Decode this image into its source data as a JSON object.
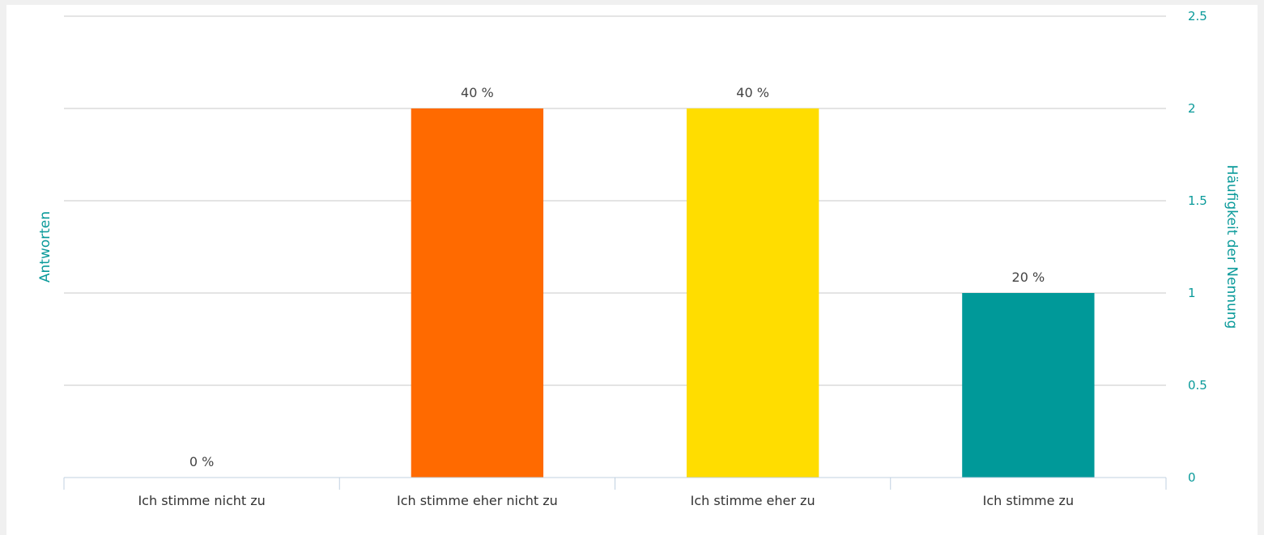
{
  "chart_data": {
    "type": "bar",
    "title": "",
    "categories": [
      "Ich stimme nicht zu",
      "Ich stimme eher nicht zu",
      "Ich stimme eher zu",
      "Ich stimme zu"
    ],
    "values": [
      0,
      2,
      2,
      1
    ],
    "data_labels": [
      "0 %",
      "40 %",
      "40 %",
      "20 %"
    ],
    "colors": [
      "#009999",
      "#ff6a00",
      "#ffdd00",
      "#009999"
    ],
    "ylabel_left": "Antworten",
    "ylabel_right": "Häufigkeit der Nennung",
    "yticks": [
      0,
      0.5,
      1,
      1.5,
      2,
      2.5
    ],
    "ytick_labels": [
      "0",
      "0.5",
      "1",
      "1.5",
      "2",
      "2.5"
    ],
    "ylim": [
      0,
      2.5
    ],
    "y_axis_side": "right",
    "grid": true
  }
}
